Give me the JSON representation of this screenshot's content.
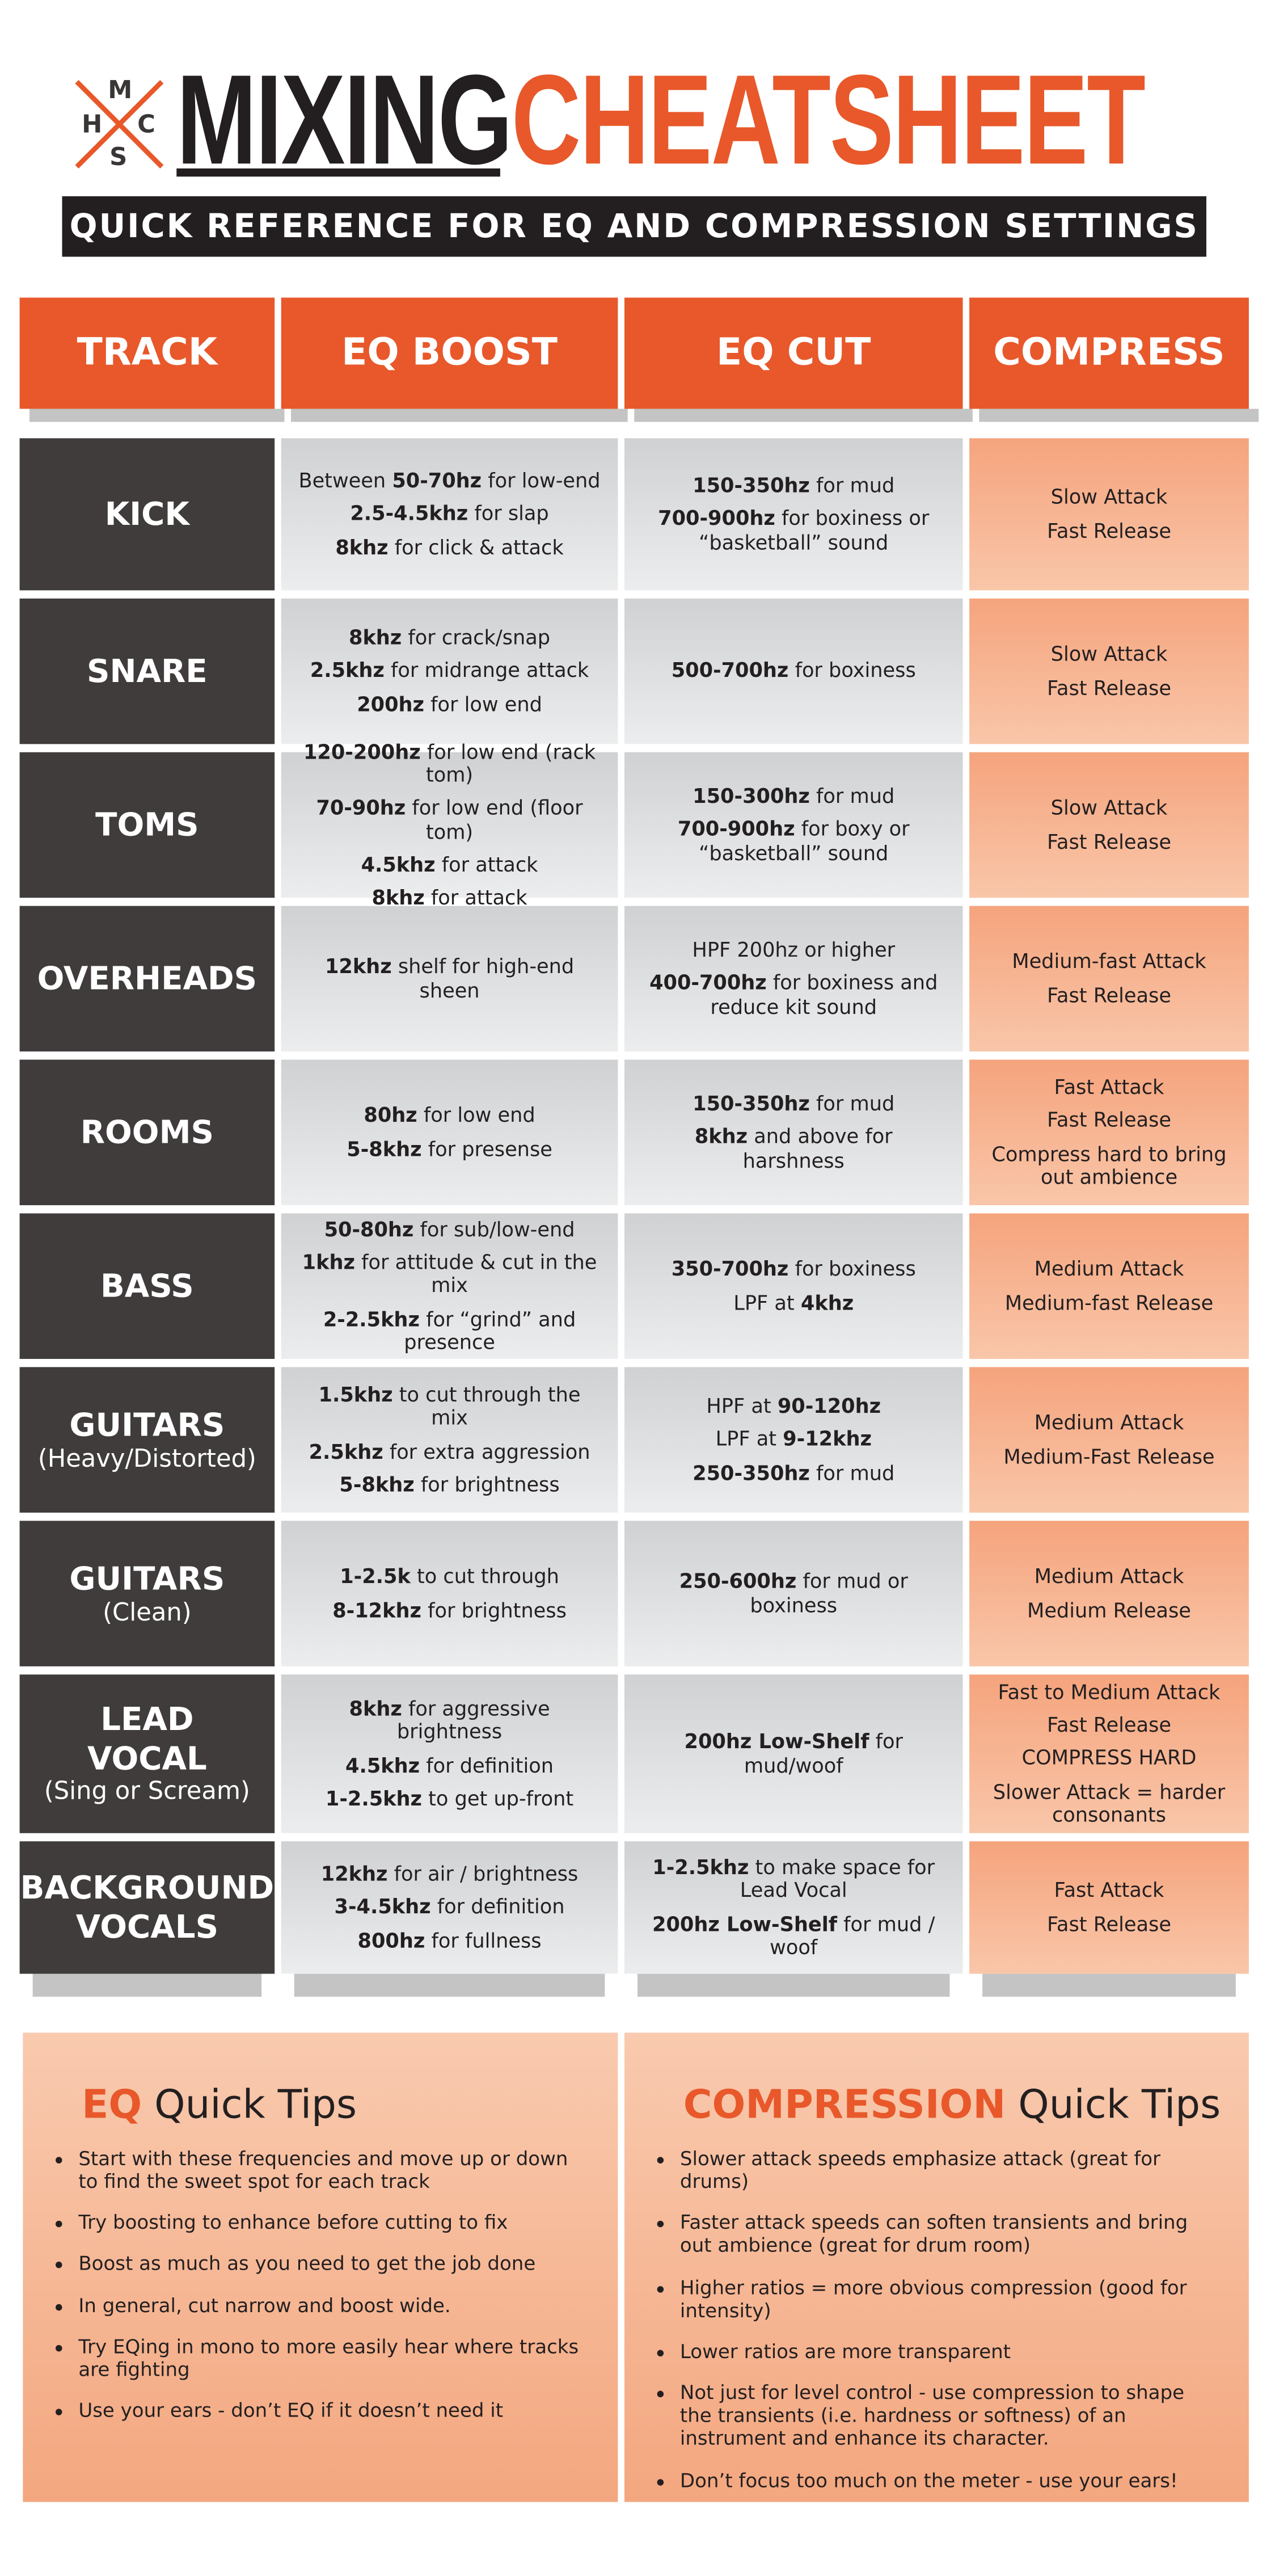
{
  "header": {
    "logo_letters": [
      "M",
      "H",
      "C",
      "S"
    ],
    "title_part1": "MIXING",
    "title_part2": "CHEATSHEET",
    "subtitle": "QUICK REFERENCE FOR EQ AND COMPRESSION SETTINGS"
  },
  "table": {
    "columns": [
      "TRACK",
      "EQ BOOST",
      "EQ CUT",
      "COMPRESS"
    ],
    "rows": [
      {
        "track": "KICK",
        "eq_boost": [
          [
            {
              "t": "Between "
            },
            {
              "b": "50-70hz"
            },
            {
              "t": " for low-end"
            }
          ],
          [
            {
              "b": "2.5-4.5khz"
            },
            {
              "t": " for slap"
            }
          ],
          [
            {
              "b": "8khz"
            },
            {
              "t": " for click & attack"
            }
          ]
        ],
        "eq_cut": [
          [
            {
              "b": "150-350hz"
            },
            {
              "t": " for mud"
            }
          ],
          [
            {
              "b": "700-900hz"
            },
            {
              "t": " for boxiness or “basketball” sound"
            }
          ]
        ],
        "compress": [
          "Slow Attack",
          "Fast Release"
        ]
      },
      {
        "track": "SNARE",
        "eq_boost": [
          [
            {
              "b": "8khz"
            },
            {
              "t": " for crack/snap"
            }
          ],
          [
            {
              "b": "2.5khz"
            },
            {
              "t": " for midrange attack"
            }
          ],
          [
            {
              "b": "200hz"
            },
            {
              "t": " for low end"
            }
          ]
        ],
        "eq_cut": [
          [
            {
              "b": "500-700hz"
            },
            {
              "t": " for boxiness"
            }
          ]
        ],
        "compress": [
          "Slow Attack",
          "Fast Release"
        ]
      },
      {
        "track": "TOMS",
        "eq_boost": [
          [
            {
              "b": "120-200hz"
            },
            {
              "t": " for low end (rack tom)"
            }
          ],
          [
            {
              "b": "70-90hz"
            },
            {
              "t": " for low end (floor tom)"
            }
          ],
          [
            {
              "b": "4.5khz"
            },
            {
              "t": " for attack"
            }
          ],
          [
            {
              "b": "8khz"
            },
            {
              "t": " for attack"
            }
          ]
        ],
        "eq_cut": [
          [
            {
              "b": "150-300hz"
            },
            {
              "t": " for mud"
            }
          ],
          [
            {
              "b": "700-900hz"
            },
            {
              "t": " for boxy or “basketball” sound"
            }
          ]
        ],
        "compress": [
          "Slow Attack",
          "Fast Release"
        ]
      },
      {
        "track": "OVERHEADS",
        "eq_boost": [
          [
            {
              "b": "12khz"
            },
            {
              "t": " shelf for high-end sheen"
            }
          ]
        ],
        "eq_cut": [
          [
            {
              "t": "HPF 200hz or higher"
            }
          ],
          [
            {
              "b": "400-700hz"
            },
            {
              "t": " for boxiness and reduce kit sound"
            }
          ]
        ],
        "compress": [
          "Medium-fast Attack",
          "Fast Release"
        ]
      },
      {
        "track": "ROOMS",
        "eq_boost": [
          [
            {
              "b": "80hz"
            },
            {
              "t": " for low end"
            }
          ],
          [
            {
              "b": "5-8khz"
            },
            {
              "t": " for presense"
            }
          ]
        ],
        "eq_cut": [
          [
            {
              "b": "150-350hz"
            },
            {
              "t": " for mud"
            }
          ],
          [
            {
              "b": "8khz"
            },
            {
              "t": " and above for harshness"
            }
          ]
        ],
        "compress": [
          "Fast Attack",
          "Fast Release",
          "Compress hard to bring out ambience"
        ]
      },
      {
        "track": "BASS",
        "eq_boost": [
          [
            {
              "b": "50-80hz"
            },
            {
              "t": " for sub/low-end"
            }
          ],
          [
            {
              "b": "1khz"
            },
            {
              "t": " for attitude & cut in the mix"
            }
          ],
          [
            {
              "b": "2-2.5khz"
            },
            {
              "t": " for “grind” and presence"
            }
          ]
        ],
        "eq_cut": [
          [
            {
              "b": "350-700hz"
            },
            {
              "t": " for boxiness"
            }
          ],
          [
            {
              "t": "LPF at "
            },
            {
              "b": "4khz"
            }
          ]
        ],
        "compress": [
          "Medium Attack",
          "Medium-fast Release"
        ]
      },
      {
        "track": "GUITARS",
        "track_sub": "(Heavy/Distorted)",
        "eq_boost": [
          [
            {
              "b": "1.5khz"
            },
            {
              "t": " to cut through the mix"
            }
          ],
          [
            {
              "b": "2.5khz"
            },
            {
              "t": " for extra aggression"
            }
          ],
          [
            {
              "b": "5-8khz"
            },
            {
              "t": " for brightness"
            }
          ]
        ],
        "eq_cut": [
          [
            {
              "t": "HPF at "
            },
            {
              "b": "90-120hz"
            }
          ],
          [
            {
              "t": "LPF at "
            },
            {
              "b": "9-12khz"
            }
          ],
          [
            {
              "b": "250-350hz"
            },
            {
              "t": " for mud"
            }
          ]
        ],
        "compress": [
          "Medium Attack",
          "Medium-Fast Release"
        ]
      },
      {
        "track": "GUITARS",
        "track_sub": "(Clean)",
        "eq_boost": [
          [
            {
              "b": "1-2.5k"
            },
            {
              "t": " to cut through"
            }
          ],
          [
            {
              "b": "8-12khz"
            },
            {
              "t": " for brightness"
            }
          ]
        ],
        "eq_cut": [
          [
            {
              "b": "250-600hz"
            },
            {
              "t": " for mud or boxiness"
            }
          ]
        ],
        "compress": [
          "Medium Attack",
          "Medium Release"
        ]
      },
      {
        "track": "LEAD VOCAL",
        "track_sub": "(Sing or Scream)",
        "eq_boost": [
          [
            {
              "b": "8khz"
            },
            {
              "t": " for aggressive brightness"
            }
          ],
          [
            {
              "b": "4.5khz"
            },
            {
              "t": " for definition"
            }
          ],
          [
            {
              "b": "1-2.5khz"
            },
            {
              "t": " to get up-front"
            }
          ]
        ],
        "eq_cut": [
          [
            {
              "b": "200hz Low-Shelf"
            },
            {
              "t": " for mud/woof"
            }
          ]
        ],
        "compress": [
          "Fast to Medium Attack",
          "Fast Release",
          "COMPRESS HARD",
          "Slower Attack = harder consonants"
        ]
      },
      {
        "track": "BACKGROUND VOCALS",
        "eq_boost": [
          [
            {
              "b": "12khz"
            },
            {
              "t": " for air / brightness"
            }
          ],
          [
            {
              "b": "3-4.5khz"
            },
            {
              "t": " for definition"
            }
          ],
          [
            {
              "b": "800hz"
            },
            {
              "t": " for fullness"
            }
          ]
        ],
        "eq_cut": [
          [
            {
              "b": "1-2.5khz"
            },
            {
              "t": " to make space for Lead Vocal"
            }
          ],
          [
            {
              "b": "200hz Low-Shelf"
            },
            {
              "t": " for mud / woof"
            }
          ]
        ],
        "compress": [
          "Fast Attack",
          "Fast Release"
        ]
      }
    ]
  },
  "tips": [
    {
      "title_highlight": "EQ",
      "title_rest": " Quick Tips",
      "items": [
        "Start with these frequencies and move up or down to find the sweet spot for each track",
        "Try boosting to enhance before cutting to fix",
        "Boost as much as you need to get the job done",
        "In general, cut narrow and boost wide.",
        "Try EQing in mono to more easily hear where tracks are fighting",
        "Use your ears - don’t EQ if it doesn’t need it"
      ]
    },
    {
      "title_highlight": "COMPRESSION",
      "title_rest": " Quick Tips",
      "items": [
        "Slower attack speeds emphasize attack (great for drums)",
        "Faster attack speeds can soften transients and bring out ambience (great for drum room)",
        "Higher ratios = more obvious compression (good for intensity)",
        "Lower ratios are more transparent",
        "Not just for level control - use compression to shape the transients (i.e. hardness or softness) of an instrument and enhance its character.",
        "Don’t focus too much on the meter - use your ears!"
      ]
    }
  ]
}
